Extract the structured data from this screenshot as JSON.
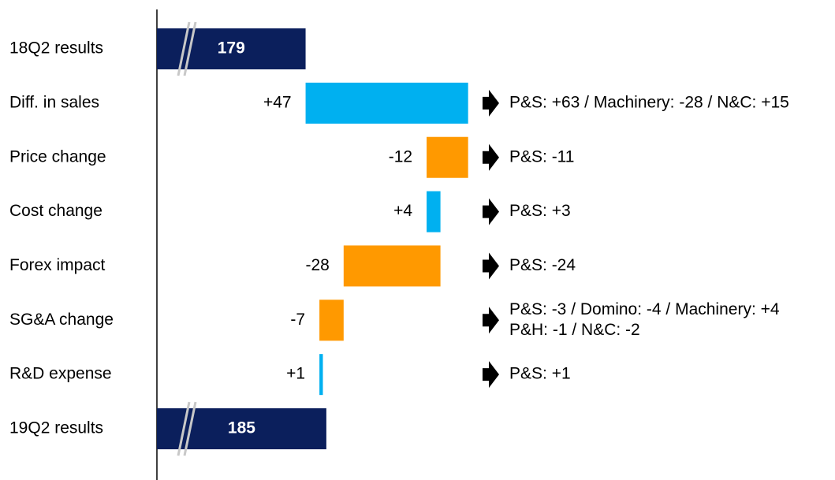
{
  "chart_data": {
    "type": "waterfall",
    "categories": [
      "18Q2 results",
      "Diff. in sales",
      "Price change",
      "Cost change",
      "Forex impact",
      "SG&A change",
      "R&D expense",
      "19Q2 results"
    ],
    "values": [
      179,
      47,
      -12,
      4,
      -28,
      -7,
      1,
      185
    ],
    "value_labels": [
      "179",
      "+47",
      "-12",
      "+4",
      "-28",
      "-7",
      "+1",
      "185"
    ],
    "is_total": [
      true,
      false,
      false,
      false,
      false,
      false,
      false,
      true
    ],
    "total_color": "#0b1f5c",
    "increase_color": "#00b0f0",
    "decrease_color": "#ff9900",
    "xlim": [
      136,
      232
    ],
    "annotations": [
      null,
      [
        "P&S: +63 / Machinery: -28 / N&C: +15"
      ],
      [
        "P&S: -11"
      ],
      [
        "P&S: +3"
      ],
      [
        "P&S: -24"
      ],
      [
        "P&S: -3 / Domino: -4 / Machinery: +4",
        "P&H: -1 / N&C: -2"
      ],
      [
        "P&S: +1"
      ],
      null
    ]
  }
}
